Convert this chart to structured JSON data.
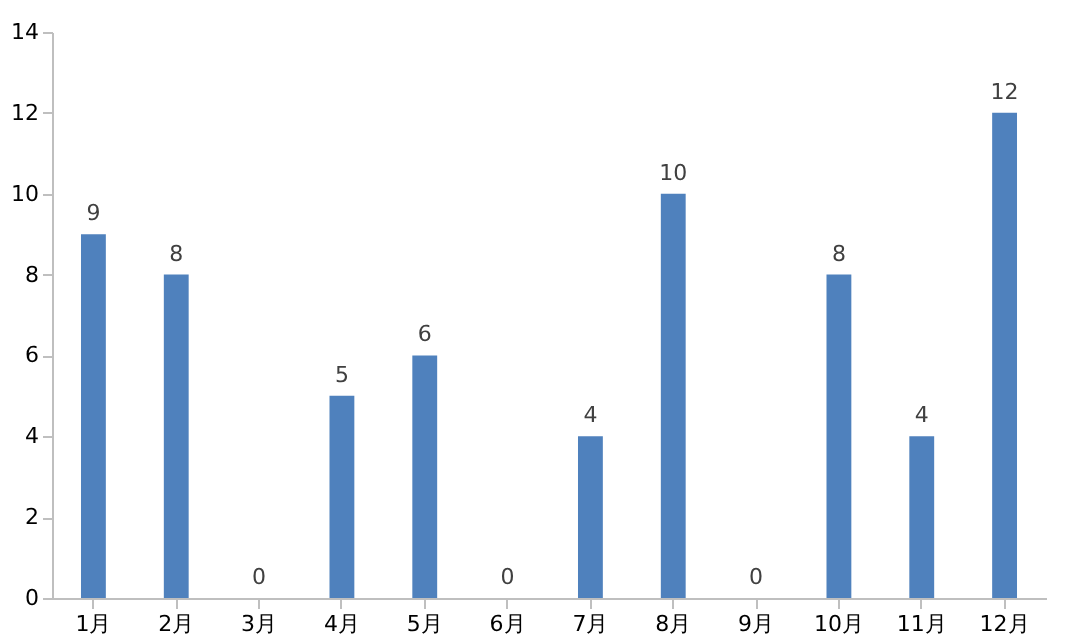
{
  "chart_data": {
    "type": "bar",
    "categories": [
      "1月",
      "2月",
      "3月",
      "4月",
      "5月",
      "6月",
      "7月",
      "8月",
      "9月",
      "10月",
      "11月",
      "12月"
    ],
    "values": [
      9,
      8,
      0,
      5,
      6,
      0,
      4,
      10,
      0,
      8,
      4,
      12
    ],
    "color": "#4f81bd",
    "ylim": [
      0,
      14
    ],
    "yticks": [
      0,
      2,
      4,
      6,
      8,
      10,
      12,
      14
    ],
    "data_labels": true
  }
}
